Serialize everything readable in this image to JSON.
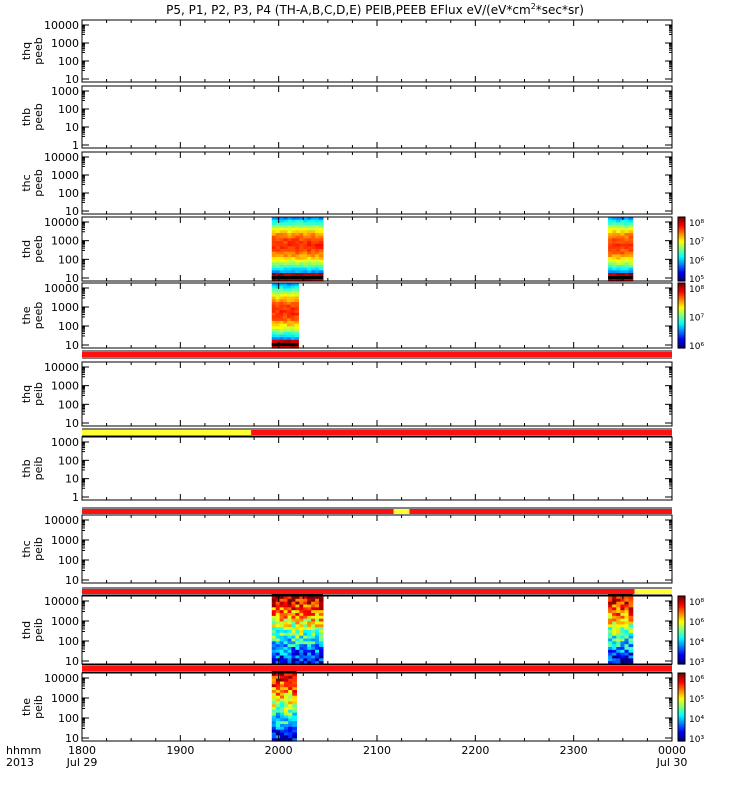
{
  "title_prefix": "P5, P1, P2, P3, P4 (TH-A,B,C,D,E) PEIB,PEEB EFlux eV/(eV*cm",
  "title_superscript": "2",
  "title_suffix": "*sec*sr)",
  "time_axis": {
    "row1_label": "hhmm",
    "row2_label": "2013",
    "tick_labels": [
      "1800",
      "1900",
      "2000",
      "2100",
      "2200",
      "2300",
      "0000"
    ],
    "date_labels": [
      "Jul 29",
      "Jul 30"
    ]
  },
  "colors": {
    "status_red": "#ff1010",
    "status_yellow": "#ffff33",
    "status_black": "#000000"
  },
  "chart_data": {
    "type": "heatmap",
    "x_range_hours": [
      18,
      24
    ],
    "panels": [
      {
        "label1": "thq",
        "label2": "peeb",
        "ticks": [
          "10000",
          "1000",
          "100",
          "10"
        ],
        "blocks": []
      },
      {
        "label1": "thb",
        "label2": "peeb",
        "ticks": [
          "1000",
          "100",
          "10",
          "1"
        ],
        "blocks": []
      },
      {
        "label1": "thc",
        "label2": "peeb",
        "ticks": [
          "10000",
          "1000",
          "100",
          "10"
        ],
        "blocks": []
      },
      {
        "label1": "thd",
        "label2": "peeb",
        "ticks": [
          "10000",
          "1000",
          "100",
          "10"
        ],
        "blocks": [
          {
            "start": 19.93,
            "end": 20.45,
            "style": "electron"
          },
          {
            "start": 23.35,
            "end": 23.6,
            "style": "electron"
          }
        ]
      },
      {
        "label1": "the",
        "label2": "peeb",
        "ticks": [
          "10000",
          "1000",
          "100",
          "10"
        ],
        "blocks": [
          {
            "start": 19.93,
            "end": 20.2,
            "style": "electron"
          }
        ]
      },
      {
        "label1": "thq",
        "label2": "peib",
        "ticks": [
          "10000",
          "1000",
          "100",
          "10"
        ],
        "blocks": []
      },
      {
        "label1": "thb",
        "label2": "peib",
        "ticks": [
          "1000",
          "100",
          "10",
          "1"
        ],
        "blocks": []
      },
      {
        "label1": "thc",
        "label2": "peib",
        "ticks": [
          "10000",
          "1000",
          "100",
          "10"
        ],
        "blocks": []
      },
      {
        "label1": "thd",
        "label2": "peib",
        "ticks": [
          "10000",
          "1000",
          "100",
          "10"
        ],
        "blocks": [
          {
            "start": 19.93,
            "end": 20.45,
            "style": "ion"
          },
          {
            "start": 23.35,
            "end": 23.6,
            "style": "ion"
          }
        ]
      },
      {
        "label1": "the",
        "label2": "peib",
        "ticks": [
          "10000",
          "1000",
          "100",
          "10"
        ],
        "blocks": [
          {
            "start": 19.93,
            "end": 20.18,
            "style": "ion"
          }
        ]
      }
    ],
    "colorbars": [
      {
        "panel": 3,
        "labels": [
          "10⁸",
          "10⁷",
          "10⁶",
          "10⁵"
        ]
      },
      {
        "panel": 4,
        "labels": [
          "10⁸",
          "10⁷",
          "10⁶"
        ]
      },
      {
        "panel": 8,
        "labels": [
          "10⁸",
          "10⁶",
          "10⁴",
          "10³"
        ]
      },
      {
        "panel": 9,
        "labels": [
          "10⁶",
          "10⁵",
          "10⁴",
          "10³"
        ]
      }
    ],
    "status_bars": [
      {
        "after_panel": 4,
        "segments": [
          {
            "start": 18,
            "end": 24,
            "color": "red"
          }
        ]
      },
      {
        "after_panel": 5,
        "segments": [
          {
            "start": 18,
            "end": 19.72,
            "color": "yellow"
          },
          {
            "start": 19.72,
            "end": 24,
            "color": "red"
          }
        ]
      },
      {
        "after_panel": 6,
        "segments": [
          {
            "start": 18,
            "end": 21.17,
            "color": "red"
          },
          {
            "start": 21.17,
            "end": 21.33,
            "color": "yellow"
          },
          {
            "start": 21.33,
            "end": 24,
            "color": "red"
          }
        ]
      },
      {
        "after_panel": 7,
        "segments": [
          {
            "start": 18,
            "end": 23.62,
            "color": "red"
          },
          {
            "start": 23.62,
            "end": 24,
            "color": "yellow"
          }
        ]
      },
      {
        "after_panel": 8,
        "segments": [
          {
            "start": 18,
            "end": 24,
            "color": "red"
          }
        ]
      }
    ]
  }
}
